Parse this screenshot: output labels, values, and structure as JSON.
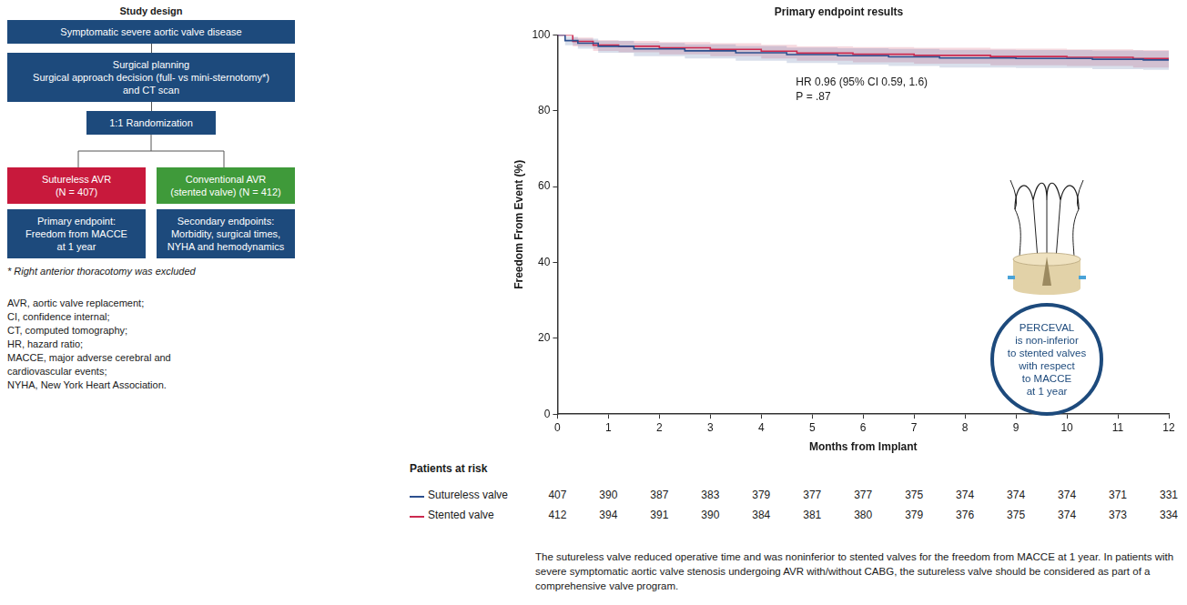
{
  "design": {
    "title": "Study design",
    "boxes": [
      [
        "Symptomatic severe aortic valve disease"
      ],
      [
        "Surgical planning",
        "Surgical approach decision (full- vs mini-sternotomy*)",
        "and CT scan"
      ],
      [
        "1:1 Randomization"
      ]
    ],
    "arms": [
      [
        "Sutureless AVR",
        "(N = 407)"
      ],
      [
        "Conventional AVR",
        "(stented valve) (N = 412)"
      ]
    ],
    "endpoints": [
      [
        "Primary endpoint:",
        "Freedom from MACCE",
        "at 1 year"
      ],
      [
        "Secondary endpoints:",
        "Morbidity, surgical times,",
        "NYHA and hemodynamics"
      ]
    ],
    "footnote": "* Right anterior thoracotomy was excluded"
  },
  "abbreviations": [
    "AVR, aortic valve replacement;",
    "CI, confidence internal;",
    "CT, computed tomography;",
    "HR, hazard ratio;",
    "MACCE, major adverse cerebral and",
    "cardiovascular events;",
    "NYHA, New York Heart Association."
  ],
  "chart_data": {
    "type": "line",
    "title": "Primary endpoint results",
    "x_label": "Months from Implant",
    "y_label": "Freedom From Event (%)",
    "xlim": [
      0,
      12
    ],
    "xticks": [
      0,
      1,
      2,
      3,
      4,
      5,
      6,
      7,
      8,
      9,
      10,
      11,
      12
    ],
    "ylim": [
      0,
      100
    ],
    "yticks": [
      0,
      20,
      40,
      60,
      80,
      100
    ],
    "grid": false,
    "line_style": "step",
    "annotations": [
      "HR 0.96 (95% CI 0.59, 1.6)",
      "P = .87"
    ],
    "at_risk_title": "Patients at risk",
    "series": [
      {
        "name": "Sutureless valve",
        "color": "#2c4f8e",
        "x": [
          0,
          0.15,
          0.4,
          0.8,
          1.5,
          2.5,
          3.5,
          4.5,
          5.5,
          6.5,
          7.5,
          9,
          10.5,
          11.5,
          12
        ],
        "values": [
          100,
          98.5,
          97.8,
          97,
          96.3,
          95.8,
          95.3,
          94.8,
          94.5,
          94.2,
          93.9,
          93.8,
          93.6,
          93.4,
          93.3
        ],
        "ci_lower": [
          100,
          97.3,
          96.4,
          95.3,
          94.4,
          93.8,
          93.2,
          92.6,
          92.2,
          91.8,
          91.4,
          91.3,
          91,
          90.8,
          90.6
        ],
        "ci_upper": [
          100,
          99.5,
          99,
          98.5,
          97.9,
          97.5,
          97.1,
          96.7,
          96.5,
          96.3,
          96.1,
          96,
          95.9,
          95.8,
          95.7
        ],
        "at_risk": [
          407,
          390,
          387,
          383,
          379,
          377,
          377,
          375,
          374,
          374,
          374,
          371,
          331
        ]
      },
      {
        "name": "Stented valve",
        "color": "#cc2a4f",
        "x": [
          0,
          0.3,
          0.7,
          1.2,
          2,
          3,
          4,
          4.7,
          5.8,
          7,
          8.5,
          10,
          11.3,
          12
        ],
        "values": [
          100,
          98.3,
          97.3,
          97,
          96.6,
          96.2,
          95.7,
          95.2,
          94.9,
          94.6,
          94.3,
          94.1,
          93.8,
          93.6
        ],
        "ci_lower": [
          100,
          97,
          95.8,
          95.4,
          94.9,
          94.4,
          93.8,
          93.2,
          92.8,
          92.4,
          92,
          91.8,
          91.4,
          91.2
        ],
        "ci_upper": [
          100,
          99.3,
          98.6,
          98.4,
          98.1,
          97.8,
          97.4,
          97,
          96.8,
          96.6,
          96.4,
          96.2,
          96,
          95.8
        ],
        "at_risk": [
          412,
          394,
          391,
          390,
          384,
          381,
          380,
          379,
          376,
          375,
          374,
          373,
          334
        ]
      }
    ]
  },
  "callout": [
    "PERCEVAL",
    "is non-inferior",
    "to stented valves",
    "with respect",
    "to MACCE",
    "at 1 year"
  ],
  "conclusion": "The sutureless valve reduced operative time and was noninferior to stented valves for the freedom from MACCE at 1 year. In patients with severe symptomatic aortic valve stenosis undergoing AVR with/without CABG, the sutureless valve should be considered as part of a comprehensive valve program."
}
